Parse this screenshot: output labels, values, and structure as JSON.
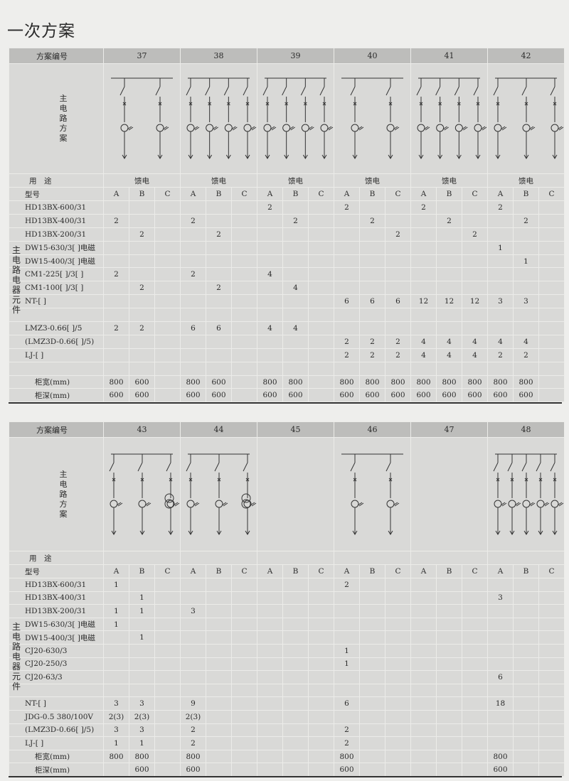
{
  "title": "一次方案",
  "labels": {
    "scheme_no": "方案编号",
    "main_circuit": "主电路方案",
    "usage": "用　途",
    "model": "型号",
    "component_group": "主电路电器元件"
  },
  "tables": [
    {
      "schemes": [
        "37",
        "38",
        "39",
        "40",
        "41",
        "42"
      ],
      "usage": [
        "馈电",
        "馈电",
        "馈电",
        "馈电",
        "馈电",
        "馈电"
      ],
      "subcols": [
        "A",
        "B",
        "C"
      ],
      "rows": [
        {
          "name": "HD13BX-600/31",
          "v": [
            "",
            "",
            "",
            "",
            "",
            "",
            "2",
            "",
            "",
            "2",
            "",
            "",
            "2",
            "",
            "",
            "2",
            "",
            ""
          ]
        },
        {
          "name": "HD13BX-400/31",
          "v": [
            "2",
            "",
            "",
            "2",
            "",
            "",
            "",
            "2",
            "",
            "",
            "2",
            "",
            "",
            "2",
            "",
            "",
            "2",
            ""
          ]
        },
        {
          "name": "HD13BX-200/31",
          "v": [
            "",
            "2",
            "",
            "",
            "2",
            "",
            "",
            "",
            "",
            "",
            "",
            "2",
            "",
            "",
            "2",
            "",
            "",
            ""
          ]
        },
        {
          "name": "DW15-630/3[ ]电磁",
          "v": [
            "",
            "",
            "",
            "",
            "",
            "",
            "",
            "",
            "",
            "",
            "",
            "",
            "",
            "",
            "",
            "1",
            "",
            ""
          ]
        },
        {
          "name": "DW15-400/3[ ]电磁",
          "v": [
            "",
            "",
            "",
            "",
            "",
            "",
            "",
            "",
            "",
            "",
            "",
            "",
            "",
            "",
            "",
            "",
            "1",
            ""
          ]
        },
        {
          "name": "CM1-225[ ]/3[ ]",
          "v": [
            "2",
            "",
            "",
            "2",
            "",
            "",
            "4",
            "",
            "",
            "",
            "",
            "",
            "",
            "",
            "",
            "",
            "",
            ""
          ]
        },
        {
          "name": "CM1-100[ ]/3[ ]",
          "v": [
            "",
            "2",
            "",
            "",
            "2",
            "",
            "",
            "4",
            "",
            "",
            "",
            "",
            "",
            "",
            "",
            "",
            "",
            ""
          ]
        },
        {
          "name": "NT-[ ]",
          "v": [
            "",
            "",
            "",
            "",
            "",
            "",
            "",
            "",
            "",
            "6",
            "6",
            "6",
            "12",
            "12",
            "12",
            "3",
            "3",
            ""
          ]
        },
        {
          "name": "",
          "v": [
            "",
            "",
            "",
            "",
            "",
            "",
            "",
            "",
            "",
            "",
            "",
            "",
            "",
            "",
            "",
            "",
            "",
            ""
          ]
        },
        {
          "name": "LMZ3-0.66[ ]/5",
          "v": [
            "2",
            "2",
            "",
            "6",
            "6",
            "",
            "4",
            "4",
            "",
            "",
            "",
            "",
            "",
            "",
            "",
            "",
            "",
            ""
          ]
        },
        {
          "name": "(LMZ3D-0.66[ ]/5)",
          "v": [
            "",
            "",
            "",
            "",
            "",
            "",
            "",
            "",
            "",
            "2",
            "2",
            "2",
            "4",
            "4",
            "4",
            "4",
            "4",
            ""
          ]
        },
        {
          "name": "LJ-[ ]",
          "v": [
            "",
            "",
            "",
            "",
            "",
            "",
            "",
            "",
            "",
            "2",
            "2",
            "2",
            "4",
            "4",
            "4",
            "2",
            "2",
            ""
          ]
        },
        {
          "name": "",
          "v": [
            "",
            "",
            "",
            "",
            "",
            "",
            "",
            "",
            "",
            "",
            "",
            "",
            "",
            "",
            "",
            "",
            "",
            ""
          ]
        },
        {
          "name": "柜宽(mm)",
          "v": [
            "800",
            "600",
            "",
            "800",
            "600",
            "",
            "800",
            "800",
            "",
            "800",
            "800",
            "800",
            "800",
            "800",
            "800",
            "800",
            "800",
            ""
          ]
        },
        {
          "name": "柜深(mm)",
          "v": [
            "600",
            "600",
            "",
            "600",
            "600",
            "",
            "600",
            "600",
            "",
            "600",
            "600",
            "600",
            "600",
            "600",
            "600",
            "600",
            "600",
            ""
          ]
        }
      ]
    },
    {
      "schemes": [
        "43",
        "44",
        "45",
        "46",
        "47",
        "48"
      ],
      "usage": [
        "",
        "",
        "",
        "",
        "",
        ""
      ],
      "subcols": [
        "A",
        "B",
        "C"
      ],
      "rows": [
        {
          "name": "HD13BX-600/31",
          "v": [
            "1",
            "",
            "",
            "",
            "",
            "",
            "",
            "",
            "",
            "2",
            "",
            "",
            "",
            "",
            "",
            "",
            "",
            ""
          ]
        },
        {
          "name": "HD13BX-400/31",
          "v": [
            "",
            "1",
            "",
            "",
            "",
            "",
            "",
            "",
            "",
            "",
            "",
            "",
            "",
            "",
            "",
            "3",
            "",
            ""
          ]
        },
        {
          "name": "HD13BX-200/31",
          "v": [
            "1",
            "1",
            "",
            "3",
            "",
            "",
            "",
            "",
            "",
            "",
            "",
            "",
            "",
            "",
            "",
            "",
            "",
            ""
          ]
        },
        {
          "name": "DW15-630/3[ ]电磁",
          "v": [
            "1",
            "",
            "",
            "",
            "",
            "",
            "",
            "",
            "",
            "",
            "",
            "",
            "",
            "",
            "",
            "",
            "",
            ""
          ]
        },
        {
          "name": "DW15-400/3[ ]电磁",
          "v": [
            "",
            "1",
            "",
            "",
            "",
            "",
            "",
            "",
            "",
            "",
            "",
            "",
            "",
            "",
            "",
            "",
            "",
            ""
          ]
        },
        {
          "name": "CJ20-630/3",
          "v": [
            "",
            "",
            "",
            "",
            "",
            "",
            "",
            "",
            "",
            "1",
            "",
            "",
            "",
            "",
            "",
            "",
            "",
            ""
          ]
        },
        {
          "name": "CJ20-250/3",
          "v": [
            "",
            "",
            "",
            "",
            "",
            "",
            "",
            "",
            "",
            "1",
            "",
            "",
            "",
            "",
            "",
            "",
            "",
            ""
          ]
        },
        {
          "name": "CJ20-63/3",
          "v": [
            "",
            "",
            "",
            "",
            "",
            "",
            "",
            "",
            "",
            "",
            "",
            "",
            "",
            "",
            "",
            "6",
            "",
            ""
          ]
        },
        {
          "name": "",
          "v": [
            "",
            "",
            "",
            "",
            "",
            "",
            "",
            "",
            "",
            "",
            "",
            "",
            "",
            "",
            "",
            "",
            "",
            ""
          ]
        },
        {
          "name": "NT-[ ]",
          "v": [
            "3",
            "3",
            "",
            "9",
            "",
            "",
            "",
            "",
            "",
            "6",
            "",
            "",
            "",
            "",
            "",
            "18",
            "",
            ""
          ]
        },
        {
          "name": "JDG-0.5 380/100V",
          "v": [
            "2(3)",
            "2(3)",
            "",
            "2(3)",
            "",
            "",
            "",
            "",
            "",
            "",
            "",
            "",
            "",
            "",
            "",
            "",
            "",
            ""
          ]
        },
        {
          "name": "(LMZ3D-0.66[ ]/5)",
          "v": [
            "3",
            "3",
            "",
            "2",
            "",
            "",
            "",
            "",
            "",
            "2",
            "",
            "",
            "",
            "",
            "",
            "",
            "",
            ""
          ]
        },
        {
          "name": "LJ-[ ]",
          "v": [
            "1",
            "1",
            "",
            "2",
            "",
            "",
            "",
            "",
            "",
            "2",
            "",
            "",
            "",
            "",
            "",
            "",
            "",
            ""
          ]
        },
        {
          "name": "柜宽(mm)",
          "v": [
            "800",
            "800",
            "",
            "800",
            "",
            "",
            "",
            "",
            "",
            "800",
            "",
            "",
            "",
            "",
            "",
            "800",
            "",
            ""
          ]
        },
        {
          "name": "柜深(mm)",
          "v": [
            "",
            "600",
            "",
            "600",
            "",
            "",
            "",
            "",
            "",
            "600",
            "",
            "",
            "",
            "",
            "",
            "600",
            "",
            ""
          ]
        }
      ]
    }
  ]
}
